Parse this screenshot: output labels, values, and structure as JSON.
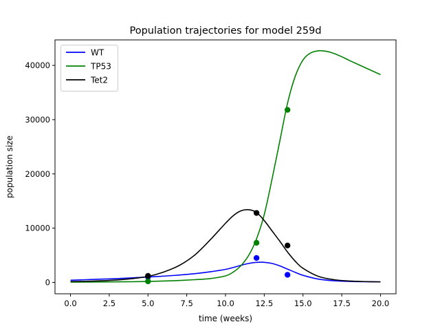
{
  "chart_data": {
    "type": "line",
    "title": "Population trajectories for model 259d",
    "xlabel": "time (weeks)",
    "ylabel": "population size",
    "xlim": [
      -1.0,
      21.0
    ],
    "ylim": [
      -2100,
      44700
    ],
    "xticks": [
      0.0,
      2.5,
      5.0,
      7.5,
      10.0,
      12.5,
      15.0,
      17.5,
      20.0
    ],
    "xtick_labels": [
      "0.0",
      "2.5",
      "5.0",
      "7.5",
      "10.0",
      "12.5",
      "15.0",
      "17.5",
      "20.0"
    ],
    "yticks": [
      0,
      10000,
      20000,
      30000,
      40000
    ],
    "ytick_labels": [
      "0",
      "10000",
      "20000",
      "30000",
      "40000"
    ],
    "grid": false,
    "legend_position": "top-left",
    "series": [
      {
        "name": "WT",
        "color": "#0000ff",
        "x": [
          0,
          1,
          2,
          3,
          4,
          5,
          6,
          7,
          8,
          9,
          10,
          10.5,
          11,
          11.5,
          12,
          12.5,
          13,
          13.5,
          14,
          14.5,
          15,
          16,
          17,
          18,
          19,
          20
        ],
        "y": [
          400,
          500,
          600,
          700,
          850,
          1000,
          1150,
          1350,
          1600,
          1950,
          2400,
          2750,
          3150,
          3500,
          3700,
          3700,
          3500,
          3050,
          2450,
          1850,
          1300,
          600,
          300,
          170,
          120,
          100
        ],
        "observed": [
          [
            5,
            1000
          ],
          [
            12,
            4500
          ],
          [
            14,
            1400
          ]
        ]
      },
      {
        "name": "TP53",
        "color": "#008000",
        "x": [
          0,
          2,
          4,
          5,
          6,
          7,
          8,
          9,
          10,
          10.5,
          11,
          11.5,
          12,
          12.5,
          13,
          13.5,
          14,
          14.5,
          15,
          15.5,
          16,
          16.5,
          17,
          17.5,
          18,
          19,
          20
        ],
        "y": [
          50,
          80,
          130,
          180,
          250,
          350,
          500,
          700,
          1200,
          1900,
          3100,
          5000,
          8000,
          12500,
          19000,
          26000,
          33000,
          38000,
          41000,
          42300,
          42700,
          42600,
          42200,
          41600,
          40900,
          39600,
          38300
        ],
        "observed": [
          [
            5,
            200
          ],
          [
            12,
            7300
          ],
          [
            14,
            31800
          ]
        ]
      },
      {
        "name": "Tet2",
        "color": "#000000",
        "x": [
          0,
          1,
          2,
          3,
          4,
          5,
          6,
          7,
          8,
          9,
          10,
          10.5,
          11,
          11.5,
          12,
          12.5,
          13,
          13.5,
          14,
          14.5,
          15,
          16,
          17,
          18,
          19,
          20
        ],
        "y": [
          150,
          200,
          300,
          450,
          700,
          1100,
          1900,
          3100,
          5000,
          7800,
          10900,
          12300,
          13200,
          13400,
          12900,
          11400,
          9500,
          7600,
          5600,
          3900,
          2600,
          1100,
          500,
          250,
          150,
          100
        ],
        "observed": [
          [
            5,
            1200
          ],
          [
            12,
            12800
          ],
          [
            14,
            6800
          ]
        ]
      }
    ]
  }
}
